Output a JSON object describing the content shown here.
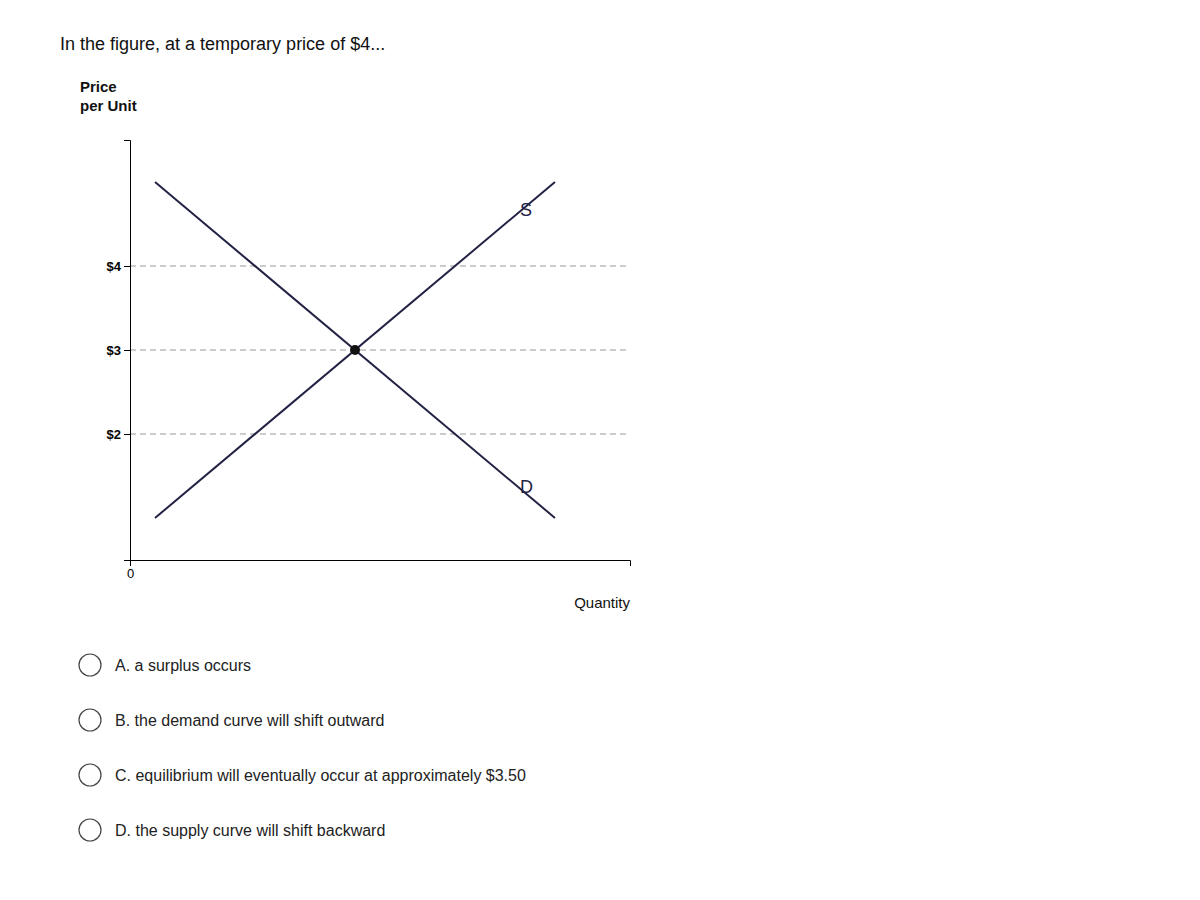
{
  "chart_data": {
    "type": "line",
    "title": "In the figure, at a temporary price of $4...",
    "x_label": "Quantity",
    "y_label": "Price\nper Unit",
    "xlim": [
      0,
      10
    ],
    "xticks": [
      0
    ],
    "ylim": [
      0.5,
      5.5
    ],
    "yticks": [
      {
        "value": 2,
        "label": "$2"
      },
      {
        "value": 3,
        "label": "$3"
      },
      {
        "value": 4,
        "label": "$4"
      }
    ],
    "grid": true,
    "series": [
      {
        "type": "line",
        "x": [
          0.5,
          8.5
        ],
        "values": [
          1.0,
          5.0
        ],
        "color": "#222244"
      },
      {
        "type": "line",
        "x": [
          0.5,
          8.5
        ],
        "values": [
          5.0,
          1.0
        ],
        "color": "#222244"
      },
      {
        "type": "scatter",
        "x": [
          4.5
        ],
        "values": [
          3.0
        ],
        "color": "#111111"
      }
    ],
    "annotations": [
      {
        "text": "S",
        "x": 7.8,
        "y": 4.6
      },
      {
        "text": "D",
        "x": 7.8,
        "y": 1.3
      }
    ]
  },
  "options": [
    "A. a surplus occurs",
    "B. the demand curve will shift outward",
    "C. equilibrium will eventually occur at approximately $3.50",
    "D. the supply curve will shift backward"
  ]
}
